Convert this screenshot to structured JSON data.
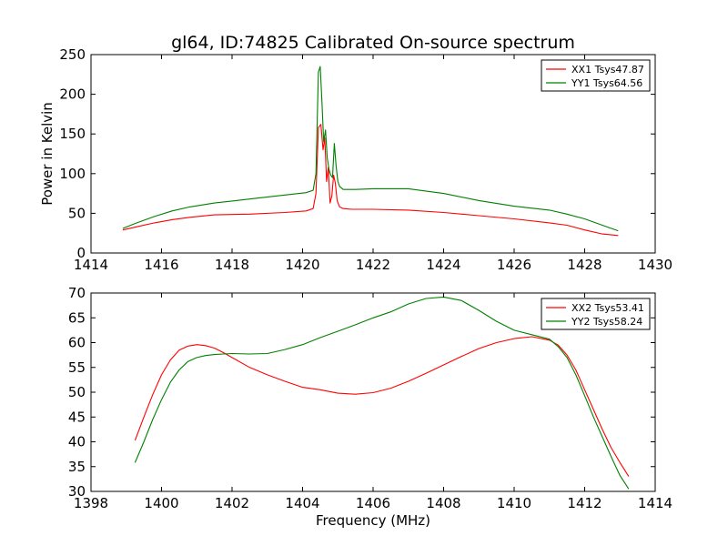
{
  "colors": {
    "background": "#ffffff",
    "axes": "#000000",
    "xx_series": "#ff0000",
    "yy_series": "#008000"
  },
  "chart_data": [
    {
      "type": "line",
      "title": "gl64, ID:74825 Calibrated On-source spectrum",
      "xlabel": "",
      "ylabel": "Power in Kelvin",
      "xlim": [
        1414,
        1430
      ],
      "ylim": [
        0,
        250
      ],
      "xticks": [
        1414,
        1416,
        1418,
        1420,
        1422,
        1424,
        1426,
        1428,
        1430
      ],
      "yticks": [
        0,
        50,
        100,
        150,
        200,
        250
      ],
      "grid": false,
      "legend_position": "upper right",
      "series": [
        {
          "name": "XX1 Tsys47.87",
          "color": "#ff0000",
          "x": [
            1414.9,
            1415.3,
            1415.8,
            1416.3,
            1416.8,
            1417.5,
            1418.5,
            1419.5,
            1420.1,
            1420.3,
            1420.38,
            1420.45,
            1420.52,
            1420.58,
            1420.63,
            1420.68,
            1420.73,
            1420.78,
            1420.83,
            1420.88,
            1420.93,
            1420.98,
            1421.05,
            1421.15,
            1421.4,
            1422,
            1423,
            1424,
            1425,
            1426,
            1427,
            1427.5,
            1428,
            1428.5,
            1428.95
          ],
          "y": [
            29,
            33,
            38,
            42,
            45,
            48,
            49,
            51,
            53,
            56,
            75,
            158,
            162,
            130,
            145,
            90,
            108,
            63,
            72,
            98,
            88,
            66,
            58,
            56,
            55,
            55,
            54,
            51,
            47,
            43,
            38,
            35,
            29,
            24,
            22
          ]
        },
        {
          "name": "YY1 Tsys64.56",
          "color": "#008000",
          "x": [
            1414.9,
            1415.3,
            1415.8,
            1416.3,
            1416.8,
            1417.5,
            1418.5,
            1419.5,
            1420.1,
            1420.3,
            1420.38,
            1420.45,
            1420.5,
            1420.55,
            1420.6,
            1420.65,
            1420.7,
            1420.75,
            1420.8,
            1420.85,
            1420.9,
            1420.95,
            1421,
            1421.05,
            1421.15,
            1421.5,
            1422,
            1423,
            1424,
            1425,
            1426,
            1427,
            1427.5,
            1428,
            1428.5,
            1428.95
          ],
          "y": [
            31,
            38,
            46,
            53,
            58,
            63,
            68,
            73,
            76,
            79,
            100,
            228,
            235,
            190,
            140,
            155,
            120,
            105,
            98,
            95,
            138,
            110,
            90,
            84,
            80,
            80,
            81,
            81,
            75,
            66,
            59,
            54,
            49,
            43,
            35,
            28
          ]
        }
      ]
    },
    {
      "type": "line",
      "title": "",
      "xlabel": "Frequency (MHz)",
      "ylabel": "",
      "xlim": [
        1398,
        1414
      ],
      "ylim": [
        30,
        70
      ],
      "xticks": [
        1398,
        1400,
        1402,
        1404,
        1406,
        1408,
        1410,
        1412,
        1414
      ],
      "yticks": [
        30,
        35,
        40,
        45,
        50,
        55,
        60,
        65,
        70
      ],
      "grid": false,
      "legend_position": "upper right",
      "series": [
        {
          "name": "XX2 Tsys53.41",
          "color": "#ff0000",
          "x": [
            1399.25,
            1399.5,
            1399.75,
            1400,
            1400.25,
            1400.5,
            1400.75,
            1401,
            1401.25,
            1401.5,
            1401.75,
            1402,
            1402.5,
            1403,
            1403.5,
            1404,
            1404.5,
            1405,
            1405.5,
            1406,
            1406.5,
            1407,
            1407.5,
            1408,
            1408.5,
            1409,
            1409.5,
            1410,
            1410.5,
            1411,
            1411.25,
            1411.5,
            1411.75,
            1412,
            1412.25,
            1412.5,
            1412.75,
            1413,
            1413.25
          ],
          "y": [
            40.3,
            45,
            49.5,
            53.5,
            56.5,
            58.5,
            59.3,
            59.6,
            59.4,
            58.9,
            58,
            57,
            55,
            53.5,
            52.2,
            51,
            50.5,
            49.8,
            49.6,
            49.9,
            50.8,
            52.2,
            53.8,
            55.5,
            57.2,
            58.8,
            60,
            60.8,
            61.2,
            60.5,
            59.5,
            57.5,
            54.5,
            50.5,
            46.5,
            42.5,
            38.8,
            35.8,
            33
          ]
        },
        {
          "name": "YY2 Tsys58.24",
          "color": "#008000",
          "x": [
            1399.25,
            1399.5,
            1399.75,
            1400,
            1400.25,
            1400.5,
            1400.75,
            1401,
            1401.25,
            1401.5,
            1401.75,
            1402,
            1402.5,
            1403,
            1403.5,
            1404,
            1404.5,
            1405,
            1405.5,
            1406,
            1406.5,
            1407,
            1407.5,
            1408,
            1408.5,
            1409,
            1409.5,
            1410,
            1410.5,
            1411,
            1411.25,
            1411.5,
            1411.75,
            1412,
            1412.25,
            1412.5,
            1412.75,
            1413,
            1413.25
          ],
          "y": [
            35.8,
            40,
            44.5,
            48.5,
            52,
            54.5,
            56.2,
            57,
            57.4,
            57.6,
            57.7,
            57.8,
            57.7,
            57.8,
            58.6,
            59.6,
            61,
            62.3,
            63.6,
            65,
            66.2,
            67.8,
            68.9,
            69.2,
            68.5,
            66.5,
            64.3,
            62.5,
            61.6,
            60.7,
            59.2,
            57,
            53.5,
            49.3,
            45,
            41,
            37,
            33.2,
            30.5
          ]
        }
      ]
    }
  ]
}
